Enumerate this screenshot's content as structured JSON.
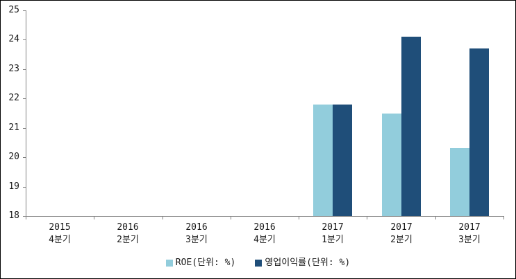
{
  "chart_data": {
    "type": "bar",
    "categories": [
      {
        "year": "2015",
        "quarter": "4분기"
      },
      {
        "year": "2016",
        "quarter": "2분기"
      },
      {
        "year": "2016",
        "quarter": "3분기"
      },
      {
        "year": "2016",
        "quarter": "4분기"
      },
      {
        "year": "2017",
        "quarter": "1분기"
      },
      {
        "year": "2017",
        "quarter": "2분기"
      },
      {
        "year": "2017",
        "quarter": "3분기"
      }
    ],
    "series": [
      {
        "name": "ROE(단위: %)",
        "color": "#92CDDC",
        "values": [
          null,
          null,
          null,
          null,
          21.8,
          21.5,
          20.3
        ]
      },
      {
        "name": "영업이익률(단위: %)",
        "color": "#1F4E79",
        "values": [
          null,
          null,
          null,
          null,
          21.8,
          24.1,
          23.7
        ]
      }
    ],
    "title": "",
    "xlabel": "",
    "ylabel": "",
    "ylim": [
      18,
      25
    ],
    "ytick_step": 1,
    "yticks": [
      "25",
      "24",
      "23",
      "22",
      "21",
      "20",
      "19",
      "18"
    ],
    "grid": false,
    "legend_position": "bottom",
    "axis_color": "#808080",
    "background_color": "#FFFFFF",
    "border_color": "#000000"
  }
}
